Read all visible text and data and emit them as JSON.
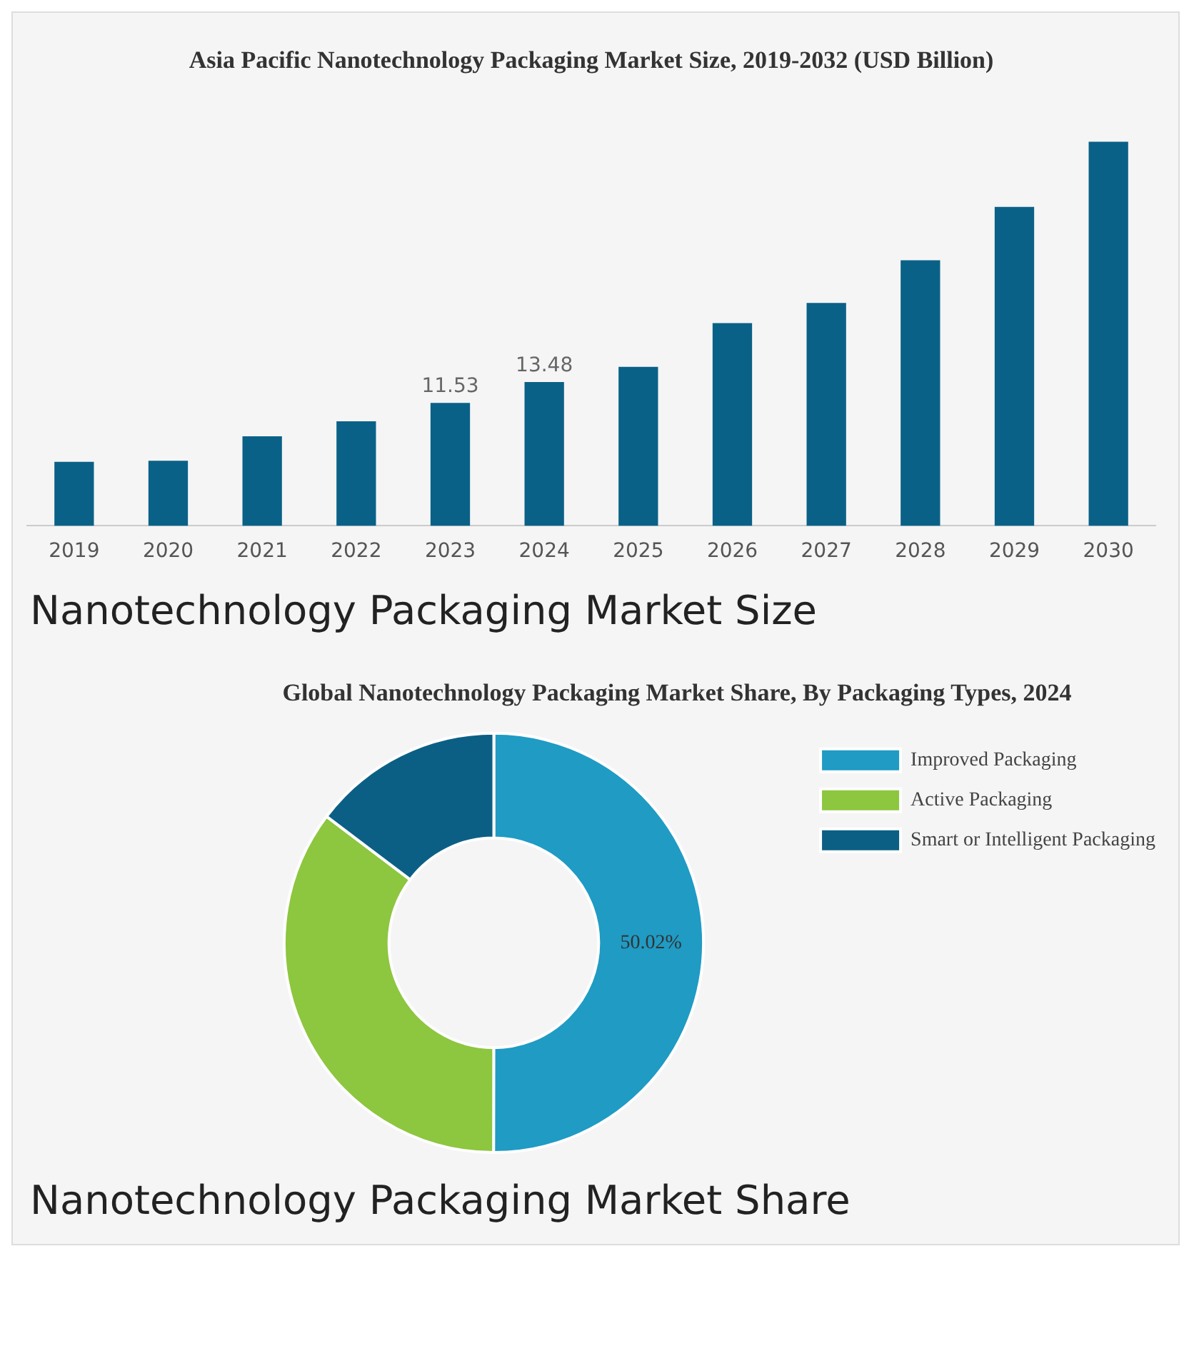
{
  "chart_data": [
    {
      "type": "bar",
      "title": "Asia Pacific Nanotechnology Packaging Market Size, 2019-2032 (USD Billion)",
      "categories": [
        "2019",
        "2020",
        "2021",
        "2022",
        "2023",
        "2024",
        "2025",
        "2026",
        "2027",
        "2028",
        "2029",
        "2030"
      ],
      "values": [
        6.0,
        6.1,
        8.4,
        9.8,
        11.53,
        13.48,
        14.9,
        19.0,
        20.9,
        24.9,
        29.9,
        36.0
      ],
      "value_labels": [
        null,
        null,
        null,
        null,
        "11.53",
        "13.48",
        null,
        null,
        null,
        null,
        null,
        null
      ],
      "color": "#0a6187",
      "grid": false,
      "legend": false,
      "tick_labels": "x",
      "annotations": [
        "Nanotechnology Packaging Market Size"
      ]
    },
    {
      "type": "donut",
      "title": "Global Nanotechnology Packaging Market Share, By Packaging Types, 2024",
      "categories": [
        "Improved Packaging",
        "Active Packaging",
        "Smart or Intelligent Packaging"
      ],
      "values": [
        50.02,
        35.28,
        14.7
      ],
      "value_labels": [
        "50.02%",
        null,
        null
      ],
      "colors": [
        "#1f9bc4",
        "#8dc63f",
        "#0b5f85"
      ],
      "legend": "right",
      "annotations": [
        "Nanotechnology Packaging Market Share"
      ]
    }
  ]
}
